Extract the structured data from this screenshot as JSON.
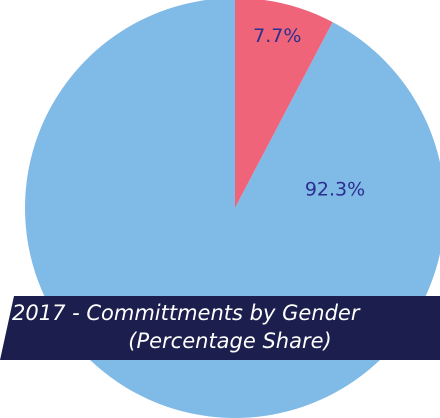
{
  "chart_data": {
    "type": "pie",
    "title": "2017 - Committments by Gender",
    "subtitle": "(Percentage Share)",
    "values": [
      7.7,
      92.3
    ],
    "value_labels": [
      "7.7%",
      "92.3%"
    ],
    "colors": [
      "#f0647a",
      "#80bae7"
    ],
    "label_color": "#2b2f8f"
  }
}
